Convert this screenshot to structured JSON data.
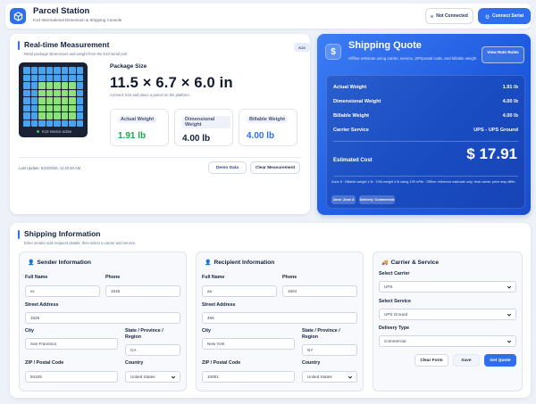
{
  "header": {
    "title": "Parcel Station",
    "subtitle": "K10 International Dimension & Shipping Console",
    "status_label": "Not Connected",
    "connect_label": "Connect Serial"
  },
  "measurement": {
    "title": "Real-time Measurement",
    "subtitle": "Read package dimensions and weight from the K10 serial port",
    "badge": "K10",
    "sensor_status": "K10 sensor active",
    "package_label": "Package Size",
    "dimensions": "11.5 × 6.7 × 6.0 in",
    "hint": "Connect K10 and place a parcel on the platform.",
    "actual_label": "Actual Weight",
    "actual_value": "1.91 lb",
    "dim_label": "Dimensional Weight",
    "dim_value": "4.00 lb",
    "billable_label": "Billable Weight",
    "billable_value": "4.00 lb",
    "last_update": "Last Update: 5/22/2026, 11:42:40 AM",
    "demo_label": "Demo Data",
    "clear_label": "Clear Measurement"
  },
  "quote": {
    "title": "Shipping Quote",
    "subtitle": "Offline estimate using carrier, service, ZIP/postal code, and billable weight",
    "rates_label": "View Rate Rules",
    "rows": [
      {
        "label": "Actual Weight",
        "value": "1.91 lb"
      },
      {
        "label": "Dimensional Weight",
        "value": "4.00 lb"
      },
      {
        "label": "Billable Weight",
        "value": "4.00 lb"
      },
      {
        "label": "Carrier Service",
        "value": "UPS - UPS Ground"
      }
    ],
    "estimated_label": "Estimated Cost",
    "estimated_value": "$ 17.91",
    "note": "Zone 8 · Billable weight 4 lb · DIM weight 4 lb using 139 in³/lb · Offline reference estimate only; final carrier price may differ.",
    "tag_zone": "Zone: Zone 8",
    "tag_delivery": "Delivery: Commercial"
  },
  "shipping": {
    "title": "Shipping Information",
    "subtitle": "Enter sender and recipient details, then select a carrier and service.",
    "sender": {
      "title": "Sender Information",
      "full_name_label": "Full Name",
      "full_name": "xx",
      "phone_label": "Phone",
      "phone": "1546",
      "street_label": "Street Address",
      "street": "1626",
      "city_label": "City",
      "city": "San Francisco",
      "state_label": "State / Province / Region",
      "state": "CA",
      "zip_label": "ZIP / Postal Code",
      "zip": "94105",
      "country_label": "Country",
      "country": "United States"
    },
    "recipient": {
      "title": "Recipient Information",
      "full_name_label": "Full Name",
      "full_name": "aa",
      "phone_label": "Phone",
      "phone": "1564",
      "street_label": "Street Address",
      "street": "456",
      "city_label": "City",
      "city": "New York",
      "state_label": "State / Province / Region",
      "state": "NY",
      "zip_label": "ZIP / Postal Code",
      "zip": "10001",
      "country_label": "Country",
      "country": "United States"
    },
    "carrier": {
      "title": "Carrier & Service",
      "carrier_label": "Select Carrier",
      "carrier": "UPS",
      "service_label": "Select Service",
      "service": "UPS Ground",
      "delivery_label": "Delivery Type",
      "delivery": "Commercial",
      "clear_form": "Clear Form",
      "save": "Save",
      "get_quote": "Get Quote"
    }
  },
  "colors": {
    "accent": "#2f6fed",
    "actual_green": "#1fa552",
    "dim_dark": "#14213d",
    "billable_blue": "#2f6fed"
  }
}
